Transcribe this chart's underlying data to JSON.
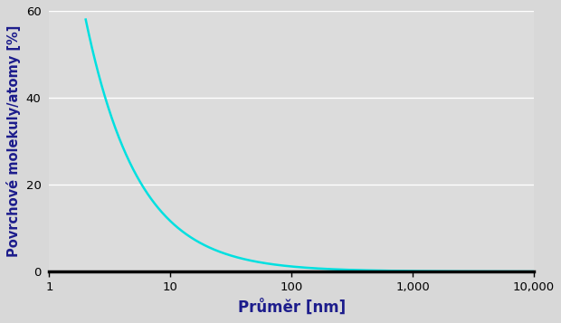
{
  "xlabel": "Průměr [nm]",
  "ylabel": "Povrchové molekuly/atomy [%]",
  "xlabel_fontsize": 12,
  "ylabel_fontsize": 10.5,
  "xlim": [
    1,
    10000
  ],
  "ylim": [
    0,
    60
  ],
  "yticks": [
    0,
    20,
    40,
    60
  ],
  "xtick_labels": [
    "1",
    "10",
    "100",
    "1,000",
    "10,000"
  ],
  "xtick_values": [
    1,
    10,
    100,
    1000,
    10000
  ],
  "line_color": "#00E0E0",
  "line_width": 1.8,
  "bg_color": "#D8D8D8",
  "axis_bg_color": "#DCDCDC",
  "label_color": "#1C1C8C",
  "tick_label_color": "#000000",
  "grid_color": "#FFFFFF",
  "grid_linewidth": 1.0,
  "bottom_line_color": "#000000",
  "x_start": 2.0,
  "x_end": 10000,
  "n_points": 1000,
  "curve_a": 116.0,
  "curve_power": 1.0
}
